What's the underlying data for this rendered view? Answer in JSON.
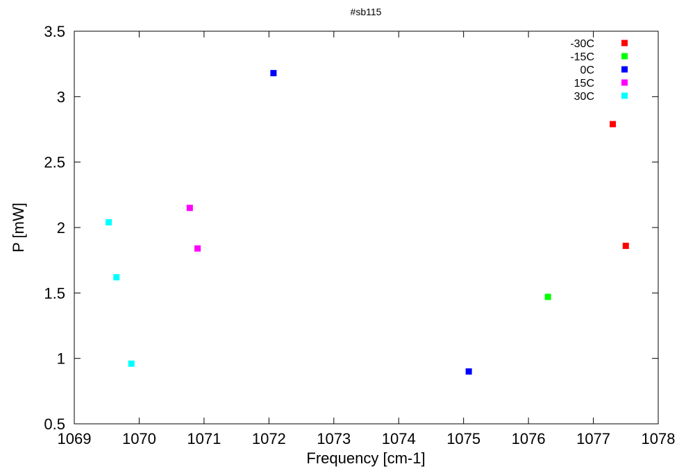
{
  "chart_data": {
    "type": "scatter",
    "title": "#sb115",
    "xlabel": "Frequency [cm-1]",
    "ylabel": "P [mW]",
    "xlim": [
      1069,
      1078
    ],
    "ylim": [
      0.5,
      3.5
    ],
    "xticks": [
      "1069",
      "1070",
      "1071",
      "1072",
      "1073",
      "1074",
      "1075",
      "1076",
      "1077",
      "1078"
    ],
    "yticks": [
      "0.5",
      "1",
      "1.5",
      "2",
      "2.5",
      "3",
      "3.5"
    ],
    "grid": false,
    "legend_position": "top-right",
    "series": [
      {
        "name": "-30C",
        "color": "#ff0000",
        "points": [
          [
            1077.3,
            2.79
          ],
          [
            1077.5,
            1.86
          ]
        ]
      },
      {
        "name": "-15C",
        "color": "#00ff00",
        "points": [
          [
            1076.3,
            1.47
          ]
        ]
      },
      {
        "name": "0C",
        "color": "#0000ff",
        "points": [
          [
            1072.07,
            3.18
          ],
          [
            1075.08,
            0.9
          ]
        ]
      },
      {
        "name": "15C",
        "color": "#ff00ff",
        "points": [
          [
            1070.78,
            2.15
          ],
          [
            1070.9,
            1.84
          ]
        ]
      },
      {
        "name": "30C",
        "color": "#00ffff",
        "points": [
          [
            1069.53,
            2.04
          ],
          [
            1069.65,
            1.62
          ],
          [
            1069.88,
            0.96
          ]
        ]
      }
    ]
  }
}
